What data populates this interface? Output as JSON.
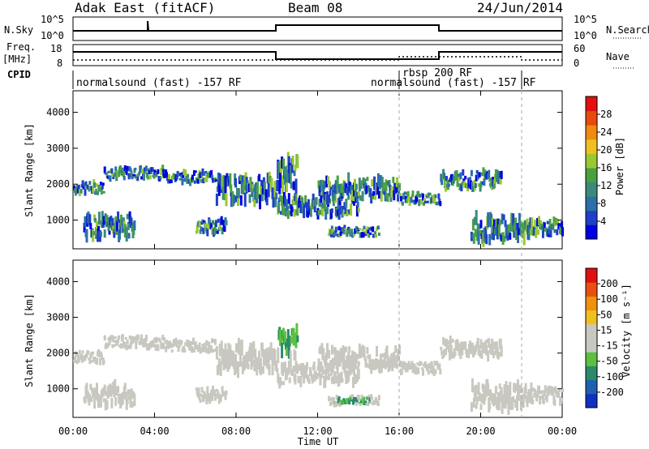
{
  "header": {
    "station": "Adak East (fitACF)",
    "beam": "Beam 08",
    "date": "24/Jun/2014"
  },
  "panels": {
    "nsky_label": "N.Sky",
    "nsky_ticks": [
      "10^5",
      "10^0"
    ],
    "nsearch_label": "N.Search",
    "nsearch_ticks": [
      "10^5",
      "10^0"
    ],
    "freq_label": "Freq.",
    "freq_unit": "[MHz]",
    "freq_ticks": [
      "18",
      "8"
    ],
    "nave_label": "Nave",
    "nave_ticks": [
      "60",
      "0"
    ],
    "cpid_label": "CPID",
    "cpid_entries": [
      {
        "text": "normalsound (fast) -157 RF"
      },
      {
        "text": "rbsp 200 RF"
      },
      {
        "text": "normalsound (fast) -157 RF"
      }
    ]
  },
  "power_colorbar": {
    "title": "Power [dB]",
    "ticks": [
      "28",
      "24",
      "20",
      "16",
      "12",
      "8",
      "4"
    ],
    "colors": [
      "#0000e0",
      "#1e3fc8",
      "#2a6fa8",
      "#3a8a7a",
      "#4aa040",
      "#9ac830",
      "#f0c020",
      "#f08a10",
      "#e84a10",
      "#e01010"
    ]
  },
  "velocity_colorbar": {
    "title": "Velocity [m s⁻¹]",
    "ticks": [
      "200",
      "100",
      "50",
      "15",
      "-15",
      "-50",
      "-100",
      "-200"
    ],
    "colors": [
      "#1030c0",
      "#1e60b0",
      "#2a8a6a",
      "#5cc040",
      "#c8c8c0",
      "#c8c8c0",
      "#f0c020",
      "#f09010",
      "#e85010",
      "#e01010"
    ]
  },
  "chart_data": {
    "type": "heatmap",
    "title": "Adak East (fitACF) Beam 08 24/Jun/2014",
    "xlabel": "Time UT",
    "ylabel": "Slant Range [km]",
    "x_ticks": [
      "00:00",
      "04:00",
      "08:00",
      "12:00",
      "16:00",
      "20:00",
      "00:00"
    ],
    "y_ticks": [
      "1000",
      "2000",
      "3000",
      "4000"
    ],
    "ylim": [
      200,
      4600
    ],
    "xlim_hours": [
      0,
      24
    ],
    "frequency_mhz": [
      {
        "start": 0,
        "end": 10,
        "value": 13
      },
      {
        "start": 10,
        "end": 18,
        "value": 11.5
      },
      {
        "start": 18,
        "end": 24,
        "value": 13
      }
    ],
    "echo_bands": [
      {
        "t0": 0.0,
        "t1": 1.5,
        "r0": 1750,
        "r1": 2050
      },
      {
        "t0": 1.5,
        "t1": 4.5,
        "r0": 2150,
        "r1": 2450
      },
      {
        "t0": 4.5,
        "t1": 7.0,
        "r0": 2050,
        "r1": 2350
      },
      {
        "t0": 7.0,
        "t1": 10.0,
        "r0": 1500,
        "r1": 2200
      },
      {
        "t0": 10.0,
        "t1": 11.0,
        "r0": 1900,
        "r1": 2700
      },
      {
        "t0": 10.0,
        "t1": 14.0,
        "r0": 1150,
        "r1": 1650
      },
      {
        "t0": 12.0,
        "t1": 16.0,
        "r0": 1600,
        "r1": 2150
      },
      {
        "t0": 16.0,
        "t1": 18.0,
        "r0": 1450,
        "r1": 1750
      },
      {
        "t0": 18.0,
        "t1": 21.0,
        "r0": 1900,
        "r1": 2350
      },
      {
        "t0": 0.5,
        "t1": 3.0,
        "r0": 550,
        "r1": 1100
      },
      {
        "t0": 6.0,
        "t1": 7.5,
        "r0": 650,
        "r1": 1000
      },
      {
        "t0": 12.5,
        "t1": 15.0,
        "r0": 550,
        "r1": 800
      },
      {
        "t0": 19.5,
        "t1": 22.5,
        "r0": 450,
        "r1": 1100
      },
      {
        "t0": 22.5,
        "t1": 24.0,
        "r0": 600,
        "r1": 1000
      }
    ],
    "positive_velocity_regions": [
      {
        "t0": 10.0,
        "t1": 11.0,
        "r0": 1950,
        "r1": 2700
      },
      {
        "t0": 12.8,
        "t1": 14.5,
        "r0": 600,
        "r1": 750
      }
    ],
    "power_scale_db": [
      0,
      30
    ],
    "velocity_scale": [
      -200,
      200
    ]
  }
}
